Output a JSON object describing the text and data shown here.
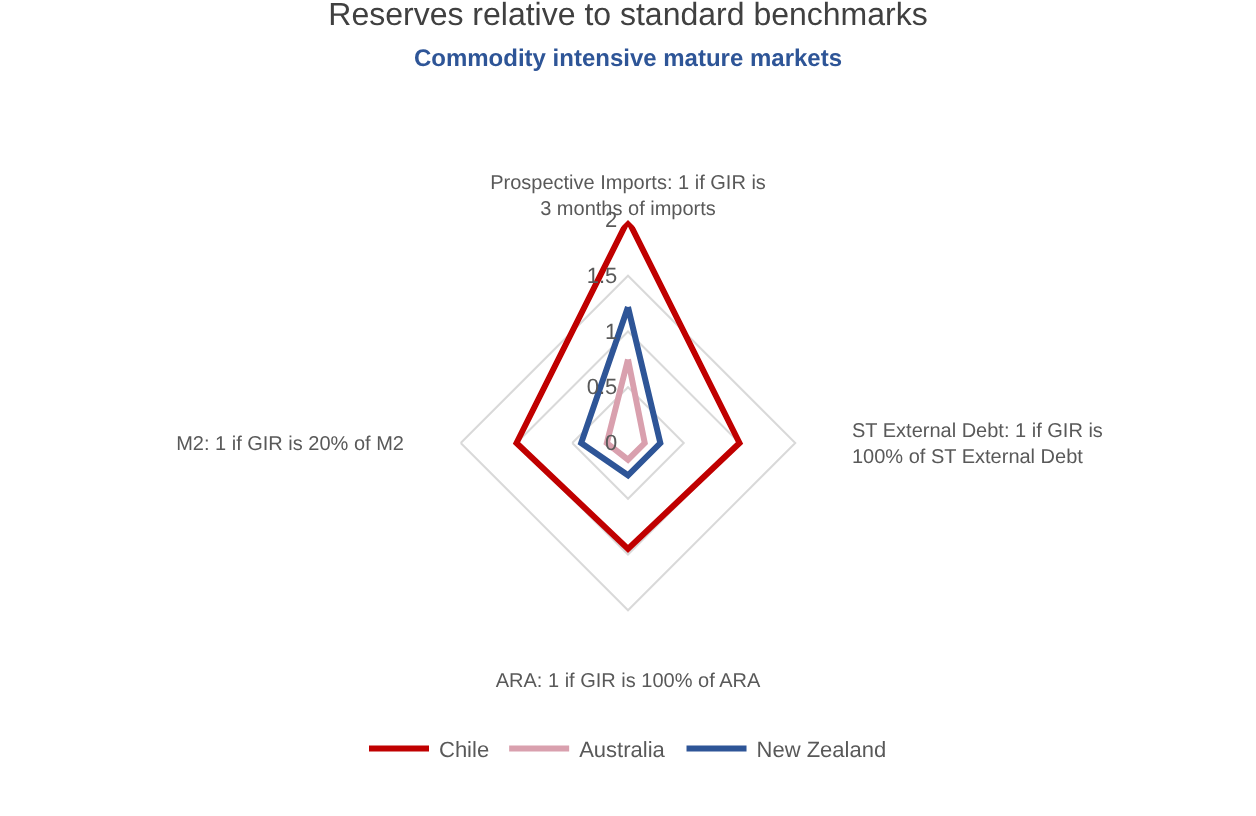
{
  "chart_data": {
    "type": "radar",
    "title": "Reserves relative to standard benchmarks",
    "subtitle": "Commodity intensive mature markets",
    "categories": [
      "Prospective Imports: 1 if GIR is\n3 months of imports",
      "ST External Debt: 1 if GIR is\n100% of ST External Debt",
      "ARA: 1 if GIR is 100% of ARA",
      "M2: 1 if GIR is 20% of M2"
    ],
    "series": [
      {
        "name": "Chile",
        "color": "#c00000",
        "values": [
          2,
          1.0,
          0.95,
          1.0
        ]
      },
      {
        "name": "Australia",
        "color": "#d9a0ae",
        "values": [
          0.75,
          0.15,
          0.15,
          0.19
        ]
      },
      {
        "name": "New Zealand",
        "color": "#2e5597",
        "values": [
          1.22,
          0.29,
          0.29,
          0.42
        ]
      }
    ],
    "ylim": [
      0,
      2
    ],
    "yticks": [
      0,
      0.5,
      1,
      1.5,
      2
    ],
    "grid": true,
    "legend": "bottom"
  }
}
